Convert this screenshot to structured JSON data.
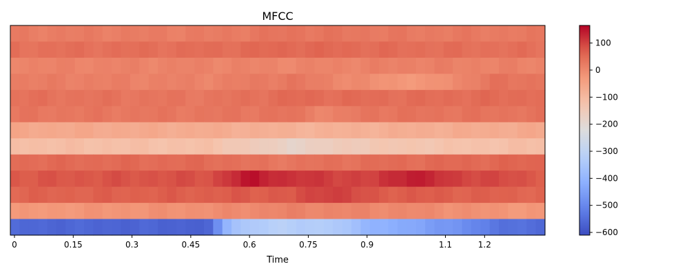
{
  "chart_data": {
    "type": "heatmap",
    "title": "MFCC",
    "xlabel": "Time",
    "ylabel": "",
    "x_ticks": [
      0,
      0.15,
      0.3,
      0.45,
      0.6,
      0.75,
      0.9,
      1.1,
      1.2
    ],
    "x_tick_labels": [
      "0",
      "0.15",
      "0.3",
      "0.45",
      "0.6",
      "0.75",
      "0.9",
      "1.1",
      "1.2"
    ],
    "x_range": [
      0,
      1.335
    ],
    "num_frames": 58,
    "num_coefficients": 13,
    "colorbar": {
      "colormap": "coolwarm",
      "range": [
        -610,
        165
      ],
      "ticks": [
        100,
        0,
        -100,
        -200,
        -300,
        -400,
        -500,
        -600
      ],
      "tick_labels": [
        "100",
        "0",
        "−100",
        "−200",
        "−300",
        "−400",
        "−500",
        "−600"
      ]
    },
    "rows_top_to_bottom": [
      {
        "base": 20,
        "profile": [
          [
            0,
            0
          ],
          [
            0.5,
            0
          ],
          [
            0.7,
            15
          ],
          [
            1.0,
            5
          ],
          [
            1.335,
            5
          ]
        ]
      },
      {
        "base": 40,
        "profile": [
          [
            0,
            0
          ],
          [
            0.5,
            5
          ],
          [
            0.7,
            15
          ],
          [
            1.0,
            5
          ],
          [
            1.335,
            0
          ]
        ]
      },
      {
        "base": 10,
        "profile": [
          [
            0,
            0
          ],
          [
            0.5,
            0
          ],
          [
            0.7,
            -5
          ],
          [
            1.0,
            5
          ],
          [
            1.335,
            0
          ]
        ]
      },
      {
        "base": 20,
        "profile": [
          [
            0,
            0
          ],
          [
            0.5,
            -10
          ],
          [
            0.7,
            10
          ],
          [
            0.95,
            -40
          ],
          [
            1.05,
            -45
          ],
          [
            1.2,
            15
          ],
          [
            1.335,
            15
          ]
        ]
      },
      {
        "base": 40,
        "profile": [
          [
            0,
            0
          ],
          [
            0.5,
            -10
          ],
          [
            0.7,
            10
          ],
          [
            1.0,
            5
          ],
          [
            1.335,
            10
          ]
        ]
      },
      {
        "base": 30,
        "profile": [
          [
            0,
            0
          ],
          [
            0.5,
            0
          ],
          [
            0.7,
            5
          ],
          [
            0.8,
            -25
          ],
          [
            0.9,
            5
          ],
          [
            1.335,
            5
          ]
        ]
      },
      {
        "base": -60,
        "profile": [
          [
            0,
            0
          ],
          [
            0.5,
            -10
          ],
          [
            0.75,
            -25
          ],
          [
            1.0,
            -15
          ],
          [
            1.335,
            -5
          ]
        ]
      },
      {
        "base": -110,
        "profile": [
          [
            0,
            0
          ],
          [
            0.5,
            -10
          ],
          [
            0.7,
            -70
          ],
          [
            0.9,
            -30
          ],
          [
            1.335,
            0
          ]
        ]
      },
      {
        "base": 50,
        "profile": [
          [
            0,
            0
          ],
          [
            0.5,
            0
          ],
          [
            0.65,
            -20
          ],
          [
            0.9,
            -5
          ],
          [
            1.335,
            10
          ]
        ]
      },
      {
        "base": 75,
        "profile": [
          [
            0,
            0
          ],
          [
            0.5,
            10
          ],
          [
            0.6,
            75
          ],
          [
            0.7,
            40
          ],
          [
            0.9,
            20
          ],
          [
            1.0,
            70
          ],
          [
            1.1,
            30
          ],
          [
            1.335,
            0
          ]
        ]
      },
      {
        "base": 60,
        "profile": [
          [
            0,
            0
          ],
          [
            0.5,
            10
          ],
          [
            0.7,
            15
          ],
          [
            0.8,
            50
          ],
          [
            0.9,
            15
          ],
          [
            1.335,
            0
          ]
        ]
      },
      {
        "base": -30,
        "profile": [
          [
            0,
            0
          ],
          [
            0.5,
            20
          ],
          [
            0.7,
            40
          ],
          [
            1.0,
            30
          ],
          [
            1.335,
            0
          ]
        ]
      },
      {
        "base": -560,
        "profile": [
          [
            0,
            0
          ],
          [
            0.5,
            -10
          ],
          [
            0.55,
            200
          ],
          [
            0.65,
            240
          ],
          [
            0.8,
            230
          ],
          [
            0.9,
            160
          ],
          [
            1.1,
            90
          ],
          [
            1.2,
            30
          ],
          [
            1.335,
            0
          ]
        ]
      }
    ]
  }
}
